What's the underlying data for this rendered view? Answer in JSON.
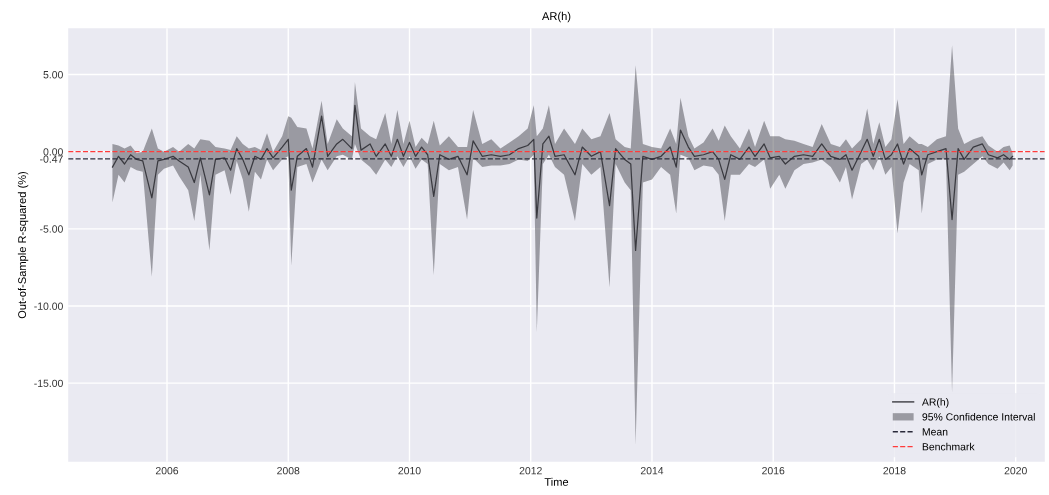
{
  "chart_data": {
    "type": "line",
    "title": "AR(h)",
    "xlabel": "Time",
    "ylabel": "Out-of-Sample R-squared (%)",
    "xlim": [
      2004.37,
      2020.48
    ],
    "xticks": [
      {
        "value": 2006,
        "label": "2006"
      },
      {
        "value": 2008,
        "label": "2008"
      },
      {
        "value": 2010,
        "label": "2010"
      },
      {
        "value": 2012,
        "label": "2012"
      },
      {
        "value": 2014,
        "label": "2014"
      },
      {
        "value": 2016,
        "label": "2016"
      },
      {
        "value": 2018,
        "label": "2018"
      },
      {
        "value": 2020,
        "label": "2020"
      }
    ],
    "ylim": [
      -20.1,
      8.0
    ],
    "yticks": [
      {
        "value": 5,
        "label": "5.00"
      },
      {
        "value": 0,
        "label": "0.00"
      },
      {
        "value": -0.47,
        "label": "-0.47"
      },
      {
        "value": -5,
        "label": "-5.00"
      },
      {
        "value": -10,
        "label": "-10.00"
      },
      {
        "value": -15,
        "label": "-15.00"
      }
    ],
    "grid": true,
    "legend": "bottom right",
    "annotations": [
      "95% Confidence Interval"
    ],
    "series": [
      {
        "name": "AR(h)",
        "color": "#3a3a40",
        "x": [
          2005.1,
          2005.2,
          2005.3,
          2005.4,
          2005.5,
          2005.6,
          2005.75,
          2005.85,
          2005.95,
          2006.1,
          2006.2,
          2006.35,
          2006.45,
          2006.55,
          2006.7,
          2006.8,
          2006.95,
          2007.05,
          2007.15,
          2007.25,
          2007.35,
          2007.45,
          2007.55,
          2007.65,
          2007.75,
          2007.9,
          2008.0,
          2008.05,
          2008.15,
          2008.3,
          2008.4,
          2008.55,
          2008.65,
          2008.8,
          2008.9,
          2009.05,
          2009.1,
          2009.2,
          2009.35,
          2009.45,
          2009.6,
          2009.7,
          2009.8,
          2009.9,
          2010.0,
          2010.1,
          2010.2,
          2010.3,
          2010.4,
          2010.5,
          2010.65,
          2010.8,
          2010.95,
          2011.05,
          2011.2,
          2011.35,
          2011.5,
          2011.65,
          2011.8,
          2011.95,
          2012.05,
          2012.1,
          2012.2,
          2012.3,
          2012.4,
          2012.55,
          2012.73,
          2012.85,
          2013.0,
          2013.15,
          2013.3,
          2013.4,
          2013.55,
          2013.65,
          2013.73,
          2013.85,
          2014.0,
          2014.15,
          2014.3,
          2014.4,
          2014.47,
          2014.6,
          2014.7,
          2014.85,
          2015.0,
          2015.1,
          2015.2,
          2015.3,
          2015.45,
          2015.6,
          2015.7,
          2015.85,
          2015.95,
          2016.1,
          2016.2,
          2016.35,
          2016.5,
          2016.65,
          2016.8,
          2016.95,
          2017.1,
          2017.2,
          2017.3,
          2017.45,
          2017.55,
          2017.65,
          2017.75,
          2017.85,
          2017.95,
          2018.05,
          2018.15,
          2018.25,
          2018.4,
          2018.45,
          2018.55,
          2018.7,
          2018.85,
          2018.95,
          2019.05,
          2019.15,
          2019.3,
          2019.45,
          2019.55,
          2019.7,
          2019.8,
          2019.9,
          2019.95
        ],
        "lower": [
          -3.3,
          -1.5,
          -2.0,
          -1.0,
          -1.2,
          -1.3,
          -8.1,
          -1.5,
          -1.1,
          -0.9,
          -1.6,
          -2.5,
          -4.5,
          -1.5,
          -6.4,
          -1.5,
          -1.2,
          -2.8,
          -0.6,
          -1.8,
          -3.9,
          -1.3,
          -1.8,
          -0.5,
          -1.2,
          -0.5,
          -0.3,
          -7.4,
          -1.0,
          -0.8,
          -2.0,
          -0.5,
          -1.2,
          -0.3,
          -0.2,
          -0.5,
          0.5,
          -0.5,
          -1.0,
          -1.5,
          -0.5,
          -1.0,
          -0.3,
          -1.0,
          -0.3,
          -1.1,
          -0.5,
          -0.8,
          -8.0,
          -0.8,
          -1.2,
          -1.0,
          -4.4,
          -0.4,
          -1.0,
          -0.9,
          -0.9,
          -0.8,
          -0.5,
          -0.6,
          -0.2,
          -11.7,
          -0.8,
          -0.2,
          -1.0,
          -1.5,
          -4.5,
          -0.8,
          -1.5,
          -1.0,
          -8.8,
          -0.8,
          -2.0,
          -2.5,
          -19.0,
          -2.0,
          -1.8,
          -1.0,
          -1.5,
          -4.0,
          -0.2,
          -0.4,
          -1.2,
          -0.9,
          -1.0,
          -1.5,
          -4.5,
          -1.5,
          -1.5,
          -0.8,
          -1.0,
          -0.5,
          -2.4,
          -1.5,
          -2.4,
          -1.2,
          -0.8,
          -0.7,
          -0.5,
          -1.0,
          -2.0,
          -1.0,
          -3.1,
          -0.8,
          -0.5,
          -1.2,
          -0.3,
          -1.5,
          -1.0,
          -5.3,
          -2.0,
          -0.8,
          -1.2,
          -4.0,
          -0.8,
          -0.5,
          -0.5,
          -15.6,
          -1.5,
          -1.3,
          -0.8,
          -0.3,
          -0.8,
          -1.1,
          -0.7,
          -1.2,
          -0.9
        ],
        "upper": [
          0.5,
          0.4,
          0.2,
          0.4,
          -0.1,
          0.0,
          1.5,
          0.2,
          0.0,
          0.3,
          0.0,
          0.5,
          0.2,
          0.8,
          0.7,
          0.3,
          0.2,
          0.1,
          1.0,
          0.5,
          0.2,
          0.3,
          0.1,
          1.2,
          0.0,
          1.0,
          2.3,
          2.2,
          1.6,
          1.5,
          0.2,
          3.3,
          0.5,
          2.1,
          1.5,
          1.0,
          4.5,
          1.5,
          1.0,
          0.8,
          2.5,
          0.5,
          2.7,
          0.5,
          2.0,
          0.3,
          0.9,
          0.5,
          2.0,
          0.4,
          1.0,
          0.3,
          0.3,
          2.7,
          0.5,
          0.8,
          0.2,
          0.6,
          1.0,
          1.5,
          3.0,
          1.0,
          1.5,
          3.0,
          0.5,
          1.5,
          0.5,
          1.5,
          0.8,
          1.0,
          2.5,
          0.8,
          0.3,
          0.2,
          5.6,
          0.5,
          0.3,
          0.2,
          1.5,
          0.5,
          3.5,
          1.0,
          0.2,
          0.6,
          1.5,
          0.7,
          1.7,
          1.0,
          0.2,
          1.5,
          0.3,
          2.0,
          1.0,
          1.0,
          0.8,
          0.7,
          0.5,
          0.3,
          1.8,
          0.5,
          0.3,
          0.8,
          0.2,
          0.8,
          2.8,
          0.5,
          1.9,
          0.3,
          0.8,
          3.4,
          0.5,
          1.0,
          0.5,
          0.5,
          0.3,
          0.8,
          1.0,
          6.9,
          1.5,
          0.5,
          0.8,
          1.0,
          0.4,
          0.0,
          0.3,
          0.4,
          -0.1
        ],
        "values": [
          -1.0,
          -0.3,
          -0.8,
          -0.2,
          -0.5,
          -0.6,
          -3.0,
          -0.6,
          -0.5,
          -0.3,
          -0.6,
          -1.0,
          -2.0,
          -0.4,
          -2.8,
          -0.5,
          -0.4,
          -1.2,
          0.2,
          -0.5,
          -1.5,
          -0.3,
          -0.5,
          0.2,
          -0.4,
          0.3,
          0.8,
          -2.5,
          -0.3,
          0.2,
          -1.0,
          2.3,
          -0.3,
          0.5,
          0.8,
          0.2,
          3.0,
          0.1,
          0.5,
          -0.3,
          0.5,
          -0.3,
          0.8,
          -0.3,
          0.6,
          -0.3,
          0.3,
          -0.2,
          -2.9,
          -0.2,
          -0.5,
          -0.3,
          -1.5,
          0.7,
          -0.3,
          -0.2,
          -0.3,
          -0.2,
          0.2,
          0.4,
          0.8,
          -4.3,
          0.5,
          1.0,
          -0.3,
          -0.2,
          -1.5,
          0.3,
          -0.3,
          0.0,
          -3.5,
          0.2,
          -0.5,
          -0.8,
          -6.4,
          -0.3,
          -0.5,
          -0.3,
          0.3,
          -1.0,
          1.4,
          0.3,
          -0.3,
          -0.2,
          0.0,
          -0.5,
          -1.8,
          -0.2,
          -0.5,
          0.3,
          -0.3,
          0.5,
          -0.4,
          -0.3,
          -0.8,
          -0.3,
          -0.2,
          -0.3,
          0.5,
          -0.3,
          -0.5,
          -0.2,
          -1.2,
          0.0,
          0.8,
          -0.3,
          0.8,
          -0.5,
          -0.2,
          0.5,
          -0.8,
          0.2,
          -0.3,
          -1.5,
          -0.2,
          0.0,
          0.2,
          -4.4,
          0.2,
          -0.5,
          0.3,
          0.5,
          -0.2,
          -0.4,
          -0.2,
          -0.5,
          -0.3
        ]
      }
    ],
    "ref_lines": [
      {
        "axis": "y",
        "value": -0.47,
        "label": "Mean",
        "color": "#2a2a3a",
        "line_style": "dashed"
      },
      {
        "axis": "y",
        "value": 0,
        "label": "Benchmark",
        "color": "#ff3b3b",
        "line_style": "dashed"
      }
    ]
  }
}
